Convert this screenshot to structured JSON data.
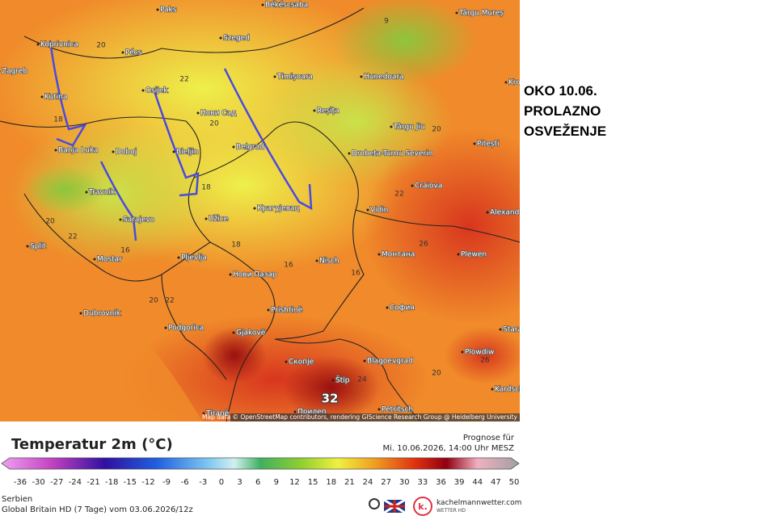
{
  "annotation": [
    "OKO 10.06.",
    "PROLAZNO",
    "OSVEŽENJE"
  ],
  "map": {
    "cities": [
      "Paks",
      "Békéscsaba",
      "Târgu Mureș",
      "Szeged",
      "Koprivnica",
      "Pécs",
      "Zagreb",
      "Timișoara",
      "Hunedoara",
      "Kutina",
      "Osijek",
      "Нови Сад",
      "Reșița",
      "Târgu Jiu",
      "Pitești",
      "Banja Luka",
      "Doboj",
      "Bieljin",
      "Belgrad",
      "Drobeta-Turnu Severin",
      "Craiova",
      "Travnik",
      "Sarajevo",
      "Užice",
      "Крагујевац",
      "Vidin",
      "Alexand",
      "Split",
      "Mostar",
      "Pljevlja",
      "Nisch",
      "Монтана",
      "Plewen",
      "Нови Пазар",
      "Dubrovnik",
      "Prishtinë",
      "София",
      "Podgorica",
      "Gjakovë",
      "Blagoevgrad",
      "Plowdiw",
      "Скопје",
      "Štip",
      "Tiranë",
      "Прилеп",
      "Petritsch",
      "Kardsch",
      "Stara",
      "Kro"
    ],
    "temperatures": [
      9,
      20,
      22,
      20,
      18,
      18,
      20,
      22,
      16,
      18,
      16,
      16,
      20,
      22,
      26,
      20,
      22,
      26,
      20,
      24,
      32
    ],
    "attribution": "Map data © OpenStreetMap contributors, rendering GIScience Research Group @ Heidelberg University"
  },
  "legend": {
    "title": "Temperatur 2m (°C)",
    "forecast_label": "Prognose für",
    "forecast_time": "Mi. 10.06.2026, 14:00 Uhr MESZ",
    "ticks": [
      -36,
      -30,
      -27,
      -24,
      -21,
      -18,
      -15,
      -12,
      -9,
      -6,
      -3,
      0,
      3,
      6,
      9,
      12,
      15,
      18,
      21,
      24,
      27,
      30,
      33,
      36,
      39,
      44,
      47,
      50
    ]
  },
  "footer": {
    "region": "Serbien",
    "model": "Global Britain HD (7 Tage) vom 03.06.2026/12z",
    "site": "kachelmannwetter.com",
    "site_sub": "WETTER HD"
  }
}
